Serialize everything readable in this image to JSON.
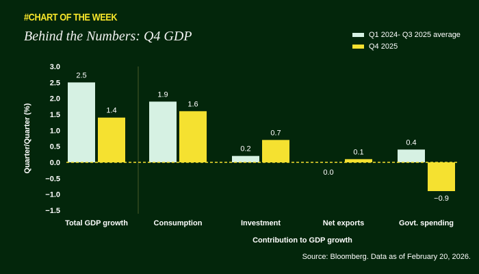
{
  "header": {
    "kicker": "#CHART OF THE WEEK",
    "title": "Behind the Numbers: Q4 GDP"
  },
  "source": "Source: Bloomberg. Data as of February 20, 2026.",
  "colors": {
    "background": "#03260b",
    "series1": "#d6f1e3",
    "series2": "#f5e130",
    "zero_line": "#f5e130"
  },
  "chart_data": {
    "type": "bar",
    "categories": [
      "Total GDP growth",
      "Consumption",
      "Investment",
      "Net exports",
      "Govt. spending"
    ],
    "series": [
      {
        "name": "Q1 2024- Q3 2025 average",
        "values": [
          2.5,
          1.9,
          0.2,
          0.0,
          0.4
        ],
        "labels": [
          "2.5",
          "1.9",
          "0.2",
          "0.0",
          "0.4"
        ]
      },
      {
        "name": "Q4 2025",
        "values": [
          1.4,
          1.6,
          0.7,
          0.1,
          -0.9
        ],
        "labels": [
          "1.4",
          "1.6",
          "0.7",
          "0.1",
          "−0.9"
        ]
      }
    ],
    "xlabel": "Contribution to GDP growth",
    "ylabel": "Quarter/Quarter (%)",
    "ylim": [
      -1.5,
      3.0
    ],
    "yticks": [
      "3.0",
      "2.5",
      "2.0",
      "1.5",
      "1.0",
      "0.5",
      "0.0",
      "−0.5",
      "−1.0",
      "−1.5"
    ],
    "grid": false,
    "legend_placement": "top-right"
  }
}
